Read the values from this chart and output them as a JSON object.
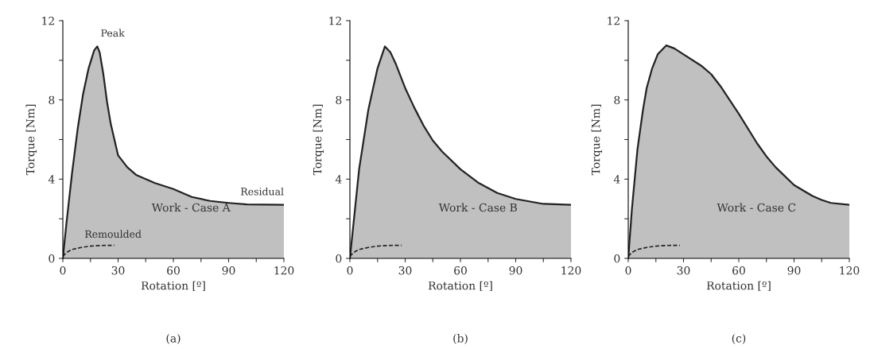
{
  "chart_data": [
    {
      "type": "area",
      "title": "(a)",
      "xlabel": "Rotation [º]",
      "ylabel": "Torque [Nm]",
      "xlim": [
        0,
        120
      ],
      "ylim": [
        0,
        12
      ],
      "xticks": [
        0,
        {
          "value": 15,
          "label": null
        },
        30,
        {
          "value": 45,
          "label": null
        },
        60,
        {
          "value": 75,
          "label": null
        },
        90,
        {
          "value": 105,
          "label": null
        },
        120
      ],
      "yticks": [
        0,
        {
          "value": 2,
          "label": null
        },
        4,
        {
          "value": 6,
          "label": null
        },
        8,
        {
          "value": 10,
          "label": null
        },
        12
      ],
      "grid": false,
      "legend": false,
      "series": [
        {
          "color": "#c0c0c0",
          "x": [
            0,
            2,
            5,
            8,
            11,
            14,
            17,
            18.7,
            20,
            22,
            24,
            26,
            28,
            30,
            35,
            40,
            50,
            60,
            70,
            80,
            90,
            100,
            120
          ],
          "values": [
            0,
            1.8,
            4.3,
            6.5,
            8.3,
            9.6,
            10.5,
            10.7,
            10.4,
            9.3,
            7.9,
            6.8,
            6.0,
            5.2,
            4.6,
            4.2,
            3.8,
            3.5,
            3.1,
            2.9,
            2.8,
            2.72,
            2.7
          ]
        },
        {
          "type": "line",
          "color": "#222222",
          "line_style": "dashed",
          "x": [
            0,
            2,
            5,
            10,
            15,
            20,
            28
          ],
          "values": [
            0.1,
            0.3,
            0.45,
            0.55,
            0.62,
            0.65,
            0.66
          ]
        }
      ],
      "annotations": [
        {
          "text": "Peak",
          "x": 18.7,
          "y": 10.7
        },
        {
          "text": "Residual",
          "x": 120,
          "y": 2.7
        },
        "Work - Case A",
        {
          "text": "Remoulded",
          "x": 10,
          "y": 0.55
        }
      ]
    },
    {
      "type": "area",
      "title": "(b)",
      "xlabel": "Rotation [º]",
      "ylabel": "Torque [Nm]",
      "xlim": [
        0,
        120
      ],
      "ylim": [
        0,
        12
      ],
      "xticks": [
        0,
        {
          "value": 15,
          "label": null
        },
        30,
        {
          "value": 45,
          "label": null
        },
        60,
        {
          "value": 75,
          "label": null
        },
        90,
        {
          "value": 105,
          "label": null
        },
        120
      ],
      "yticks": [
        0,
        {
          "value": 2,
          "label": null
        },
        4,
        {
          "value": 6,
          "label": null
        },
        8,
        {
          "value": 10,
          "label": null
        },
        12
      ],
      "grid": false,
      "legend": false,
      "series": [
        {
          "color": "#c0c0c0",
          "x": [
            0,
            5,
            10,
            15,
            19,
            22,
            25,
            30,
            35,
            40,
            45,
            50,
            60,
            70,
            80,
            90,
            105,
            120
          ],
          "values": [
            0,
            4.5,
            7.5,
            9.6,
            10.7,
            10.4,
            9.8,
            8.6,
            7.6,
            6.7,
            5.95,
            5.4,
            4.5,
            3.8,
            3.3,
            3.0,
            2.75,
            2.7
          ]
        },
        {
          "type": "line",
          "color": "#222222",
          "line_style": "dashed",
          "x": [
            0,
            2,
            5,
            10,
            15,
            20,
            28
          ],
          "values": [
            0.1,
            0.3,
            0.45,
            0.55,
            0.62,
            0.65,
            0.66
          ]
        }
      ],
      "annotations": [
        "Work - Case B"
      ]
    },
    {
      "type": "area",
      "title": "(c)",
      "xlabel": "Rotation [º]",
      "ylabel": "Torque [Nm]",
      "xlim": [
        0,
        120
      ],
      "ylim": [
        0,
        12
      ],
      "xticks": [
        0,
        {
          "value": 15,
          "label": null
        },
        30,
        {
          "value": 45,
          "label": null
        },
        60,
        {
          "value": 75,
          "label": null
        },
        90,
        {
          "value": 105,
          "label": null
        },
        120
      ],
      "yticks": [
        0,
        {
          "value": 2,
          "label": null
        },
        4,
        {
          "value": 6,
          "label": null
        },
        8,
        {
          "value": 10,
          "label": null
        },
        12
      ],
      "grid": false,
      "legend": false,
      "series": [
        {
          "color": "#c0c0c0",
          "x": [
            0,
            2,
            5,
            8,
            10,
            13,
            16,
            20.6,
            25,
            30,
            40,
            45,
            50,
            60,
            70,
            75,
            80,
            90,
            100,
            105,
            110,
            120
          ],
          "values": [
            0,
            2.5,
            5.5,
            7.5,
            8.6,
            9.6,
            10.3,
            10.75,
            10.6,
            10.3,
            9.7,
            9.3,
            8.7,
            7.3,
            5.8,
            5.15,
            4.6,
            3.7,
            3.15,
            2.95,
            2.8,
            2.7
          ]
        },
        {
          "type": "line",
          "color": "#222222",
          "line_style": "dashed",
          "x": [
            0,
            2,
            5,
            10,
            15,
            20,
            28
          ],
          "values": [
            0.1,
            0.3,
            0.45,
            0.55,
            0.62,
            0.65,
            0.66
          ]
        }
      ],
      "annotations": [
        "Work - Case C"
      ]
    }
  ]
}
